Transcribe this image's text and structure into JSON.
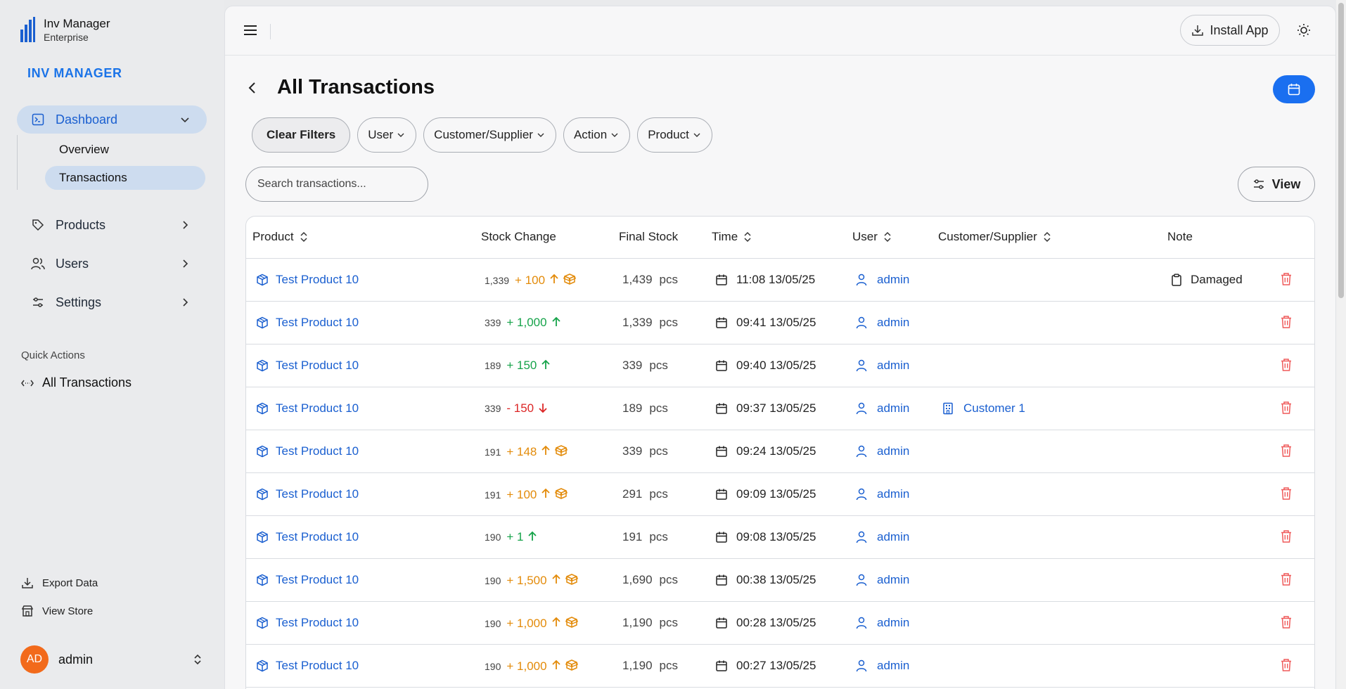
{
  "app": {
    "name": "Inv Manager",
    "edition": "Enterprise",
    "heading": "INV MANAGER"
  },
  "sidebar": {
    "dashboard": "Dashboard",
    "sub_items": [
      "Overview",
      "Transactions"
    ],
    "products": "Products",
    "users": "Users",
    "settings": "Settings",
    "quick_actions_label": "Quick Actions",
    "quick_action": "All Transactions",
    "export": "Export Data",
    "view_store": "View Store",
    "user_initials": "AD",
    "user_name": "admin"
  },
  "topbar": {
    "install_label": "Install App"
  },
  "page": {
    "title": "All Transactions",
    "filters": [
      "Clear Filters",
      "User",
      "Customer/Supplier",
      "Action",
      "Product"
    ],
    "search_placeholder": "Search transactions...",
    "view_label": "View"
  },
  "table": {
    "headers": [
      "Product",
      "Stock Change",
      "Final Stock",
      "Time",
      "User",
      "Customer/Supplier",
      "Note"
    ],
    "rows": [
      {
        "product": "Test Product 10",
        "before": "1,339",
        "delta": "+ 100",
        "kind": "warn",
        "final": "1,439",
        "unit": "pcs",
        "time": "11:08 13/05/25",
        "user": "admin",
        "customer": "",
        "note": "Damaged"
      },
      {
        "product": "Test Product 10",
        "before": "339",
        "delta": "+ 1,000",
        "kind": "pos",
        "final": "1,339",
        "unit": "pcs",
        "time": "09:41 13/05/25",
        "user": "admin",
        "customer": "",
        "note": ""
      },
      {
        "product": "Test Product 10",
        "before": "189",
        "delta": "+ 150",
        "kind": "pos",
        "final": "339",
        "unit": "pcs",
        "time": "09:40 13/05/25",
        "user": "admin",
        "customer": "",
        "note": ""
      },
      {
        "product": "Test Product 10",
        "before": "339",
        "delta": "- 150",
        "kind": "neg",
        "final": "189",
        "unit": "pcs",
        "time": "09:37 13/05/25",
        "user": "admin",
        "customer": "Customer 1",
        "note": ""
      },
      {
        "product": "Test Product 10",
        "before": "191",
        "delta": "+ 148",
        "kind": "warn",
        "final": "339",
        "unit": "pcs",
        "time": "09:24 13/05/25",
        "user": "admin",
        "customer": "",
        "note": ""
      },
      {
        "product": "Test Product 10",
        "before": "191",
        "delta": "+ 100",
        "kind": "warn",
        "final": "291",
        "unit": "pcs",
        "time": "09:09 13/05/25",
        "user": "admin",
        "customer": "",
        "note": ""
      },
      {
        "product": "Test Product 10",
        "before": "190",
        "delta": "+ 1",
        "kind": "pos",
        "final": "191",
        "unit": "pcs",
        "time": "09:08 13/05/25",
        "user": "admin",
        "customer": "",
        "note": ""
      },
      {
        "product": "Test Product 10",
        "before": "190",
        "delta": "+ 1,500",
        "kind": "warn",
        "final": "1,690",
        "unit": "pcs",
        "time": "00:38 13/05/25",
        "user": "admin",
        "customer": "",
        "note": ""
      },
      {
        "product": "Test Product 10",
        "before": "190",
        "delta": "+ 1,000",
        "kind": "warn",
        "final": "1,190",
        "unit": "pcs",
        "time": "00:28 13/05/25",
        "user": "admin",
        "customer": "",
        "note": ""
      },
      {
        "product": "Test Product 10",
        "before": "190",
        "delta": "+ 1,000",
        "kind": "warn",
        "final": "1,190",
        "unit": "pcs",
        "time": "00:27 13/05/25",
        "user": "admin",
        "customer": "",
        "note": ""
      }
    ]
  },
  "colors": {
    "accent": "#1a6ff0",
    "positive": "#16a34a",
    "warning": "#e38b0a",
    "negative": "#dc2626",
    "avatar": "#f26a1b"
  }
}
